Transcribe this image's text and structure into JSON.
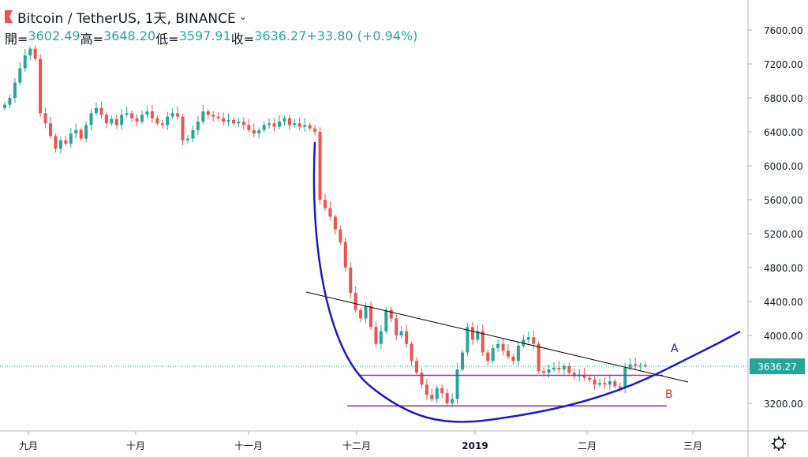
{
  "header": {
    "symbol": "Bitcoin / TetherUS, 1天, BINANCE",
    "open_label": "開=",
    "open": "3602.49",
    "high_label": "高=",
    "high": "3648.20",
    "low_label": "低=",
    "low": "3597.91",
    "close_label": "收=",
    "close": "3636.27",
    "change": "+33.80 (+0.94%)"
  },
  "colors": {
    "up": "#26a69a",
    "down": "#ef5350",
    "curve": "#1a1ac8",
    "support": "#9c27b0",
    "trend": "#000000",
    "price_tag": "#26a69a",
    "label_a": "#1a1ac8",
    "label_b": "#d32f2f"
  },
  "chart_data": {
    "type": "candlestick",
    "y_ticks": [
      "7600.00",
      "7200.00",
      "6800.00",
      "6400.00",
      "6000.00",
      "5600.00",
      "5200.00",
      "4800.00",
      "4400.00",
      "4000.00",
      "3600.00",
      "3200.00"
    ],
    "ylim": [
      2950,
      7900
    ],
    "x_ticks": [
      "九月",
      "十月",
      "十一月",
      "十二月",
      "2019",
      "二月",
      "三月"
    ],
    "last_price_label": "3636.27",
    "last_price": 3636.27,
    "annotations": [
      {
        "text": "A",
        "kind": "label"
      },
      {
        "text": "B",
        "kind": "label"
      }
    ],
    "support_levels": [
      3530,
      3170
    ],
    "trendline": {
      "from": 4520,
      "to": 3340
    },
    "candles_close": [
      6720,
      6800,
      6980,
      7150,
      7300,
      7380,
      7260,
      6620,
      6500,
      6350,
      6200,
      6300,
      6260,
      6380,
      6420,
      6320,
      6480,
      6620,
      6680,
      6600,
      6500,
      6550,
      6480,
      6600,
      6620,
      6560,
      6520,
      6600,
      6640,
      6560,
      6500,
      6480,
      6580,
      6620,
      6580,
      6300,
      6320,
      6420,
      6520,
      6640,
      6600,
      6580,
      6560,
      6520,
      6540,
      6500,
      6520,
      6480,
      6420,
      6380,
      6420,
      6480,
      6500,
      6460,
      6520,
      6560,
      6480,
      6500,
      6460,
      6480,
      6440,
      6400,
      5600,
      5500,
      5400,
      5250,
      5100,
      4800,
      4500,
      4300,
      4200,
      4350,
      4100,
      3900,
      4050,
      4300,
      4200,
      4000,
      4050,
      3900,
      3700,
      3560,
      3420,
      3300,
      3250,
      3380,
      3320,
      3200,
      3250,
      3600,
      3800,
      4100,
      3950,
      4050,
      3800,
      3700,
      3850,
      3900,
      3820,
      3750,
      3700,
      3880,
      3950,
      3980,
      3900,
      3580,
      3560,
      3600,
      3620,
      3600,
      3640,
      3560,
      3520,
      3540,
      3500,
      3480,
      3420,
      3440,
      3420,
      3460,
      3400,
      3380,
      3620,
      3660,
      3640,
      3650,
      3636
    ]
  }
}
